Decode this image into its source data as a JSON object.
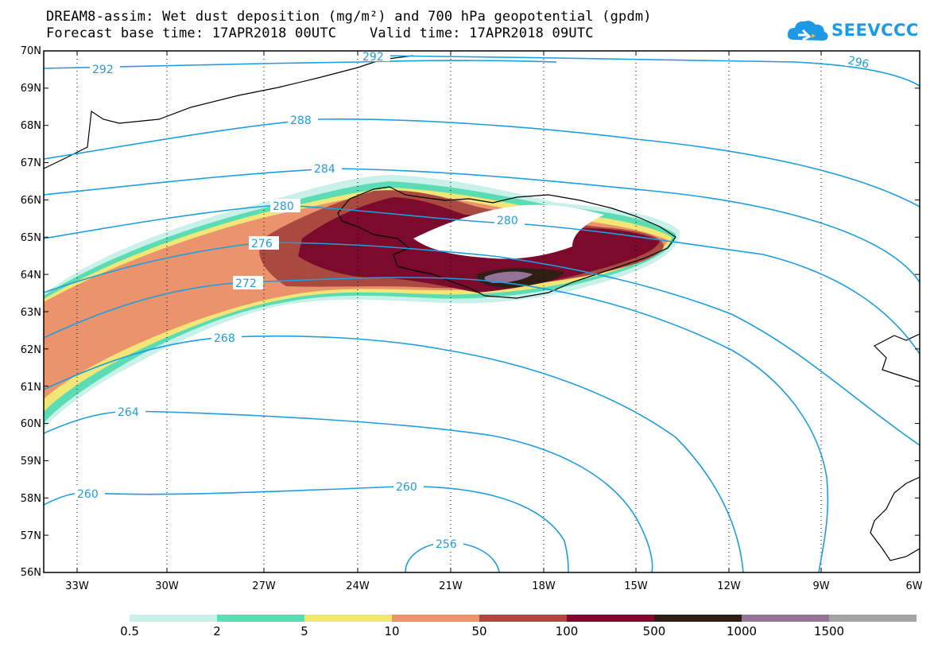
{
  "title": {
    "line1": "DREAM8-assim: Wet dust deposition (mg/m²) and 700 hPa geopotential (gpdm)",
    "line2": "Forecast base time: 17APR2018 00UTC    Valid time: 17APR2018 09UTC"
  },
  "logo": {
    "text": "SEEVCCC"
  },
  "lat_labels": [
    "70N",
    "69N",
    "68N",
    "67N",
    "66N",
    "65N",
    "64N",
    "63N",
    "62N",
    "61N",
    "60N",
    "59N",
    "58N",
    "57N",
    "56N"
  ],
  "lon_labels": [
    "33W",
    "30W",
    "27W",
    "24W",
    "21W",
    "18W",
    "15W",
    "12W",
    "9W",
    "6W"
  ],
  "contour_labels": [
    "292",
    "292",
    "296",
    "288",
    "284",
    "280",
    "280",
    "276",
    "272",
    "268",
    "264",
    "260",
    "260",
    "256"
  ],
  "legend": {
    "labels": [
      "0.5",
      "2",
      "5",
      "10",
      "50",
      "100",
      "500",
      "1000",
      "1500"
    ],
    "colors": [
      "#c9f1ea",
      "#5cdcb3",
      "#f2e677",
      "#ea936c",
      "#a9493f",
      "#7c0a2c",
      "#2e1e14",
      "#957399",
      "#a3a3a3"
    ]
  },
  "colors": {
    "contour": "#1e9ee0",
    "land_outline": "#000000"
  }
}
